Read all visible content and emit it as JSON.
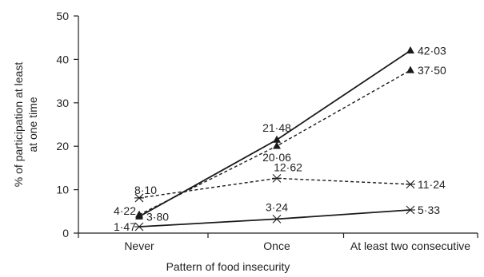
{
  "chart_data": {
    "type": "line",
    "title": "",
    "xlabel": "Pattern of food insecurity",
    "ylabel": "% of participation at least at one time",
    "categories": [
      "Never",
      "Once",
      "At least two consecutive"
    ],
    "ylim": [
      0,
      50
    ],
    "yticks": [
      0,
      10,
      20,
      30,
      40,
      50
    ],
    "grid": false,
    "legend": "none",
    "series": [
      {
        "values": [
          3.8,
          21.48,
          42.03
        ],
        "labels": [
          "3·80",
          "21·48",
          "42·03"
        ],
        "line_style": "solid",
        "marker": "triangle",
        "color": "#1a1a1a"
      },
      {
        "values": [
          4.22,
          20.06,
          37.5
        ],
        "labels": [
          "4·22",
          "20·06",
          "37·50"
        ],
        "line_style": "dashed",
        "marker": "triangle",
        "color": "#1a1a1a"
      },
      {
        "values": [
          8.1,
          12.62,
          11.24
        ],
        "labels": [
          "8·10",
          "12·62",
          "11·24"
        ],
        "line_style": "dashed",
        "marker": "asterisk",
        "color": "#1a1a1a"
      },
      {
        "values": [
          1.47,
          3.24,
          5.33
        ],
        "labels": [
          "1·47",
          "3·24",
          "5·33"
        ],
        "line_style": "solid",
        "marker": "asterisk",
        "color": "#1a1a1a"
      }
    ]
  }
}
